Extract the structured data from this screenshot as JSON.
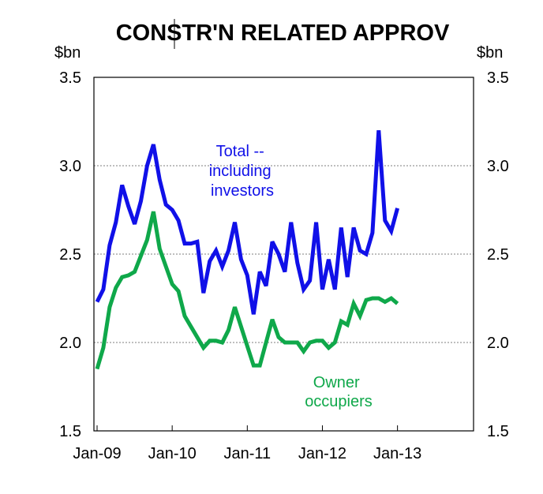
{
  "chart_data": {
    "type": "line",
    "title": "CONSTR'N RELATED APPROV",
    "unit_left": "$bn",
    "unit_right": "$bn",
    "ylim": [
      1.5,
      3.5
    ],
    "yticks": [
      "3.5",
      "3.0",
      "2.5",
      "2.0",
      "1.5"
    ],
    "ytick_values": [
      3.5,
      3.0,
      2.5,
      2.0,
      1.5
    ],
    "xlabels": [
      "Jan-09",
      "Jan-10",
      "Jan-11",
      "Jan-12",
      "Jan-13"
    ],
    "grid": "horizontal dashed",
    "series": [
      {
        "name": "Total -- including investors",
        "label_lines": [
          "Total --",
          "including",
          "investors"
        ],
        "color": "#1010e8",
        "values": [
          2.23,
          2.3,
          2.55,
          2.68,
          2.89,
          2.77,
          2.67,
          2.8,
          3.0,
          3.12,
          2.92,
          2.78,
          2.75,
          2.69,
          2.56,
          2.56,
          2.57,
          2.28,
          2.46,
          2.52,
          2.43,
          2.52,
          2.68,
          2.47,
          2.38,
          2.16,
          2.4,
          2.32,
          2.57,
          2.5,
          2.4,
          2.68,
          2.45,
          2.3,
          2.35,
          2.68,
          2.3,
          2.47,
          2.3,
          2.65,
          2.37,
          2.65,
          2.52,
          2.5,
          2.62,
          3.2,
          2.69,
          2.63,
          2.76
        ]
      },
      {
        "name": "Owner occupiers",
        "label_lines": [
          "Owner",
          "occupiers"
        ],
        "color": "#0fa84a",
        "values": [
          1.85,
          1.97,
          2.2,
          2.31,
          2.37,
          2.38,
          2.4,
          2.49,
          2.58,
          2.74,
          2.53,
          2.43,
          2.33,
          2.29,
          2.15,
          2.09,
          2.03,
          1.97,
          2.01,
          2.01,
          2.0,
          2.07,
          2.2,
          2.09,
          1.98,
          1.87,
          1.87,
          2.0,
          2.13,
          2.03,
          2.0,
          2.0,
          2.0,
          1.95,
          2.0,
          2.01,
          2.01,
          1.97,
          2.0,
          2.12,
          2.1,
          2.22,
          2.15,
          2.24,
          2.25,
          2.25,
          2.23,
          2.25,
          2.22
        ]
      }
    ]
  }
}
